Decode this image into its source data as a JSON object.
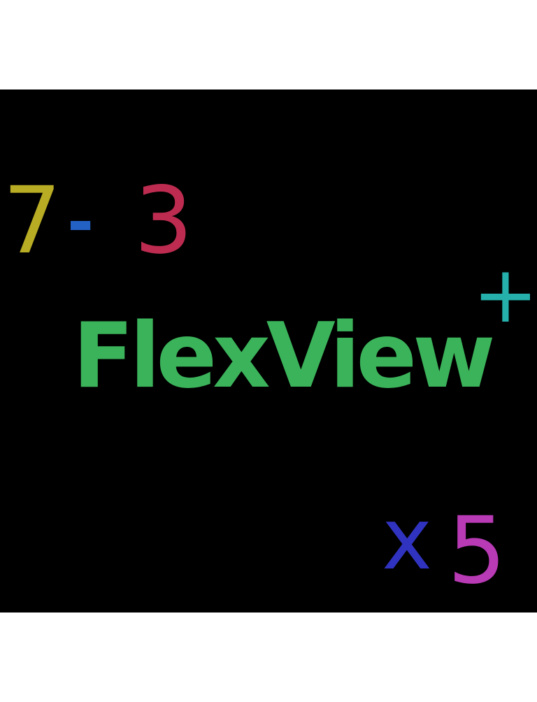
{
  "logo": {
    "brand_text": "FlexView",
    "brand_color": "#3bb35a",
    "background_color": "#000000",
    "symbols": [
      {
        "id": "seven",
        "text": "7",
        "color": "#b8ac24"
      },
      {
        "id": "minus",
        "text": "-",
        "color": "#2461c4"
      },
      {
        "id": "three",
        "text": "3",
        "color": "#bd2c50"
      },
      {
        "id": "plus",
        "text": "+",
        "color": "#26b0ac"
      },
      {
        "id": "x",
        "text": "x",
        "color": "#3033bf"
      },
      {
        "id": "five",
        "text": "5",
        "color": "#b83ab5"
      }
    ]
  }
}
